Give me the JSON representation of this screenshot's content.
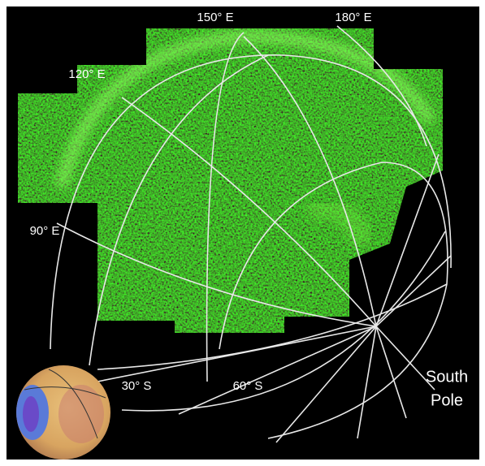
{
  "labels": {
    "lon": [
      "150° E",
      "180° E",
      "120° E",
      "90° E"
    ],
    "lat": [
      "30° S",
      "60° S"
    ],
    "pole": [
      "South",
      "Pole"
    ]
  }
}
